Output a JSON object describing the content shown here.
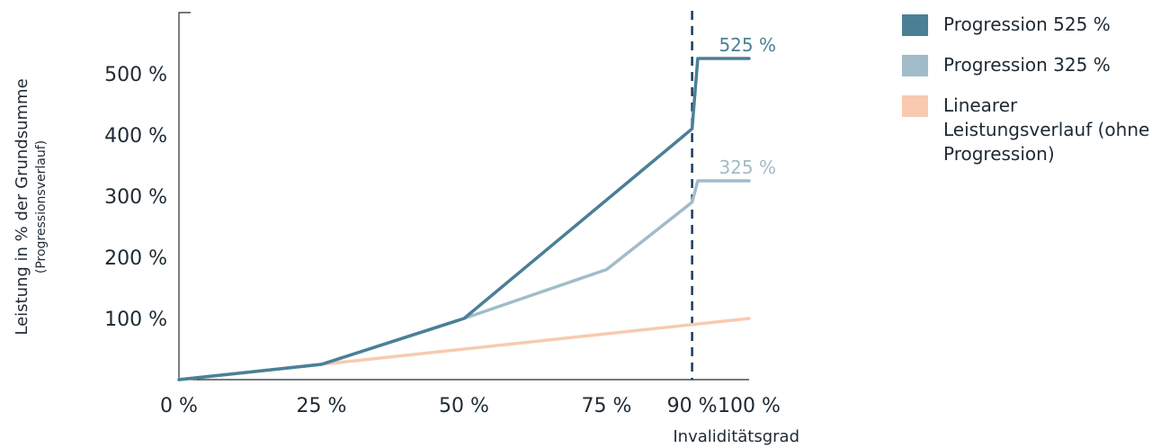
{
  "chart_data": {
    "type": "line",
    "ylabel": "Leistung in % der Grundsumme",
    "ylabel_sub": "(Progressionsverlauf)",
    "xlabel": "Invaliditätsgrad",
    "x_ticks": [
      {
        "label": "0 %",
        "value": 0
      },
      {
        "label": "25 %",
        "value": 25
      },
      {
        "label": "50 %",
        "value": 50
      },
      {
        "label": "75 %",
        "value": 75
      },
      {
        "label": "90 %",
        "value": 90,
        "highlight": true
      },
      {
        "label": "100 %",
        "value": 100
      }
    ],
    "y_ticks": [
      {
        "label": "100 %",
        "value": 100
      },
      {
        "label": "200 %",
        "value": 200
      },
      {
        "label": "300 %",
        "value": 300
      },
      {
        "label": "400 %",
        "value": 400
      },
      {
        "label": "500 %",
        "value": 500
      }
    ],
    "xlim": [
      0,
      100
    ],
    "ylim": [
      0,
      600
    ],
    "reference_line": {
      "x": 90,
      "style": "dashed",
      "color": "#1b3a5c"
    },
    "series": [
      {
        "name": "Progression 525 %",
        "color": "#4a8096",
        "end_label": "525 %",
        "x": [
          0,
          25,
          50,
          90,
          91,
          100
        ],
        "y": [
          0,
          25,
          100,
          410,
          525,
          525
        ]
      },
      {
        "name": "Progression 325 %",
        "color": "#a1bcc8",
        "end_label": "325 %",
        "x": [
          0,
          25,
          50,
          75,
          90,
          91,
          100
        ],
        "y": [
          0,
          25,
          100,
          180,
          290,
          325,
          325
        ]
      },
      {
        "name": "Linearer Leistungsverlauf (ohne Progression)",
        "color": "#f8cab0",
        "x": [
          0,
          100
        ],
        "y": [
          0,
          100
        ]
      }
    ],
    "grid": false,
    "legend_position": "right"
  },
  "legend": [
    {
      "label": "Progression 525 %",
      "color": "#4a8096"
    },
    {
      "label": "Progression 325 %",
      "color": "#a1bcc8"
    },
    {
      "label": "Linearer Leistungsverlauf (ohne Progression)",
      "color": "#f8cab0"
    }
  ]
}
